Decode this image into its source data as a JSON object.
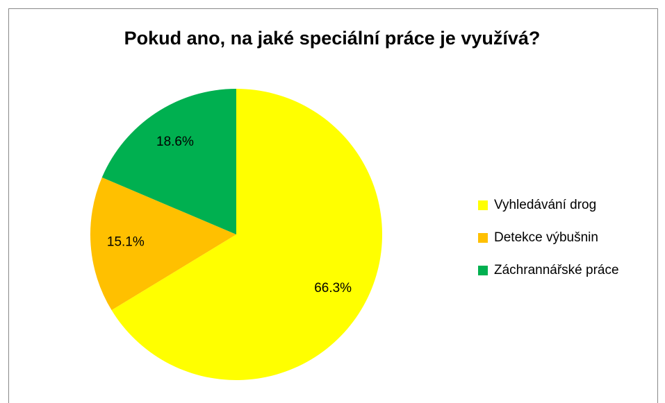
{
  "chart_data": {
    "type": "pie",
    "title": "Pokud ano, na jaké speciální práce je využívá?",
    "categories": [
      "Vyhledávání drog",
      "Detekce výbušnin",
      "Záchrannářské práce"
    ],
    "values": [
      66.3,
      15.1,
      18.6
    ],
    "value_labels": [
      "66.3%",
      "15.1%",
      "18.6%"
    ],
    "colors": [
      "#FFFF00",
      "#FFC000",
      "#00B050"
    ],
    "legend": "right"
  }
}
